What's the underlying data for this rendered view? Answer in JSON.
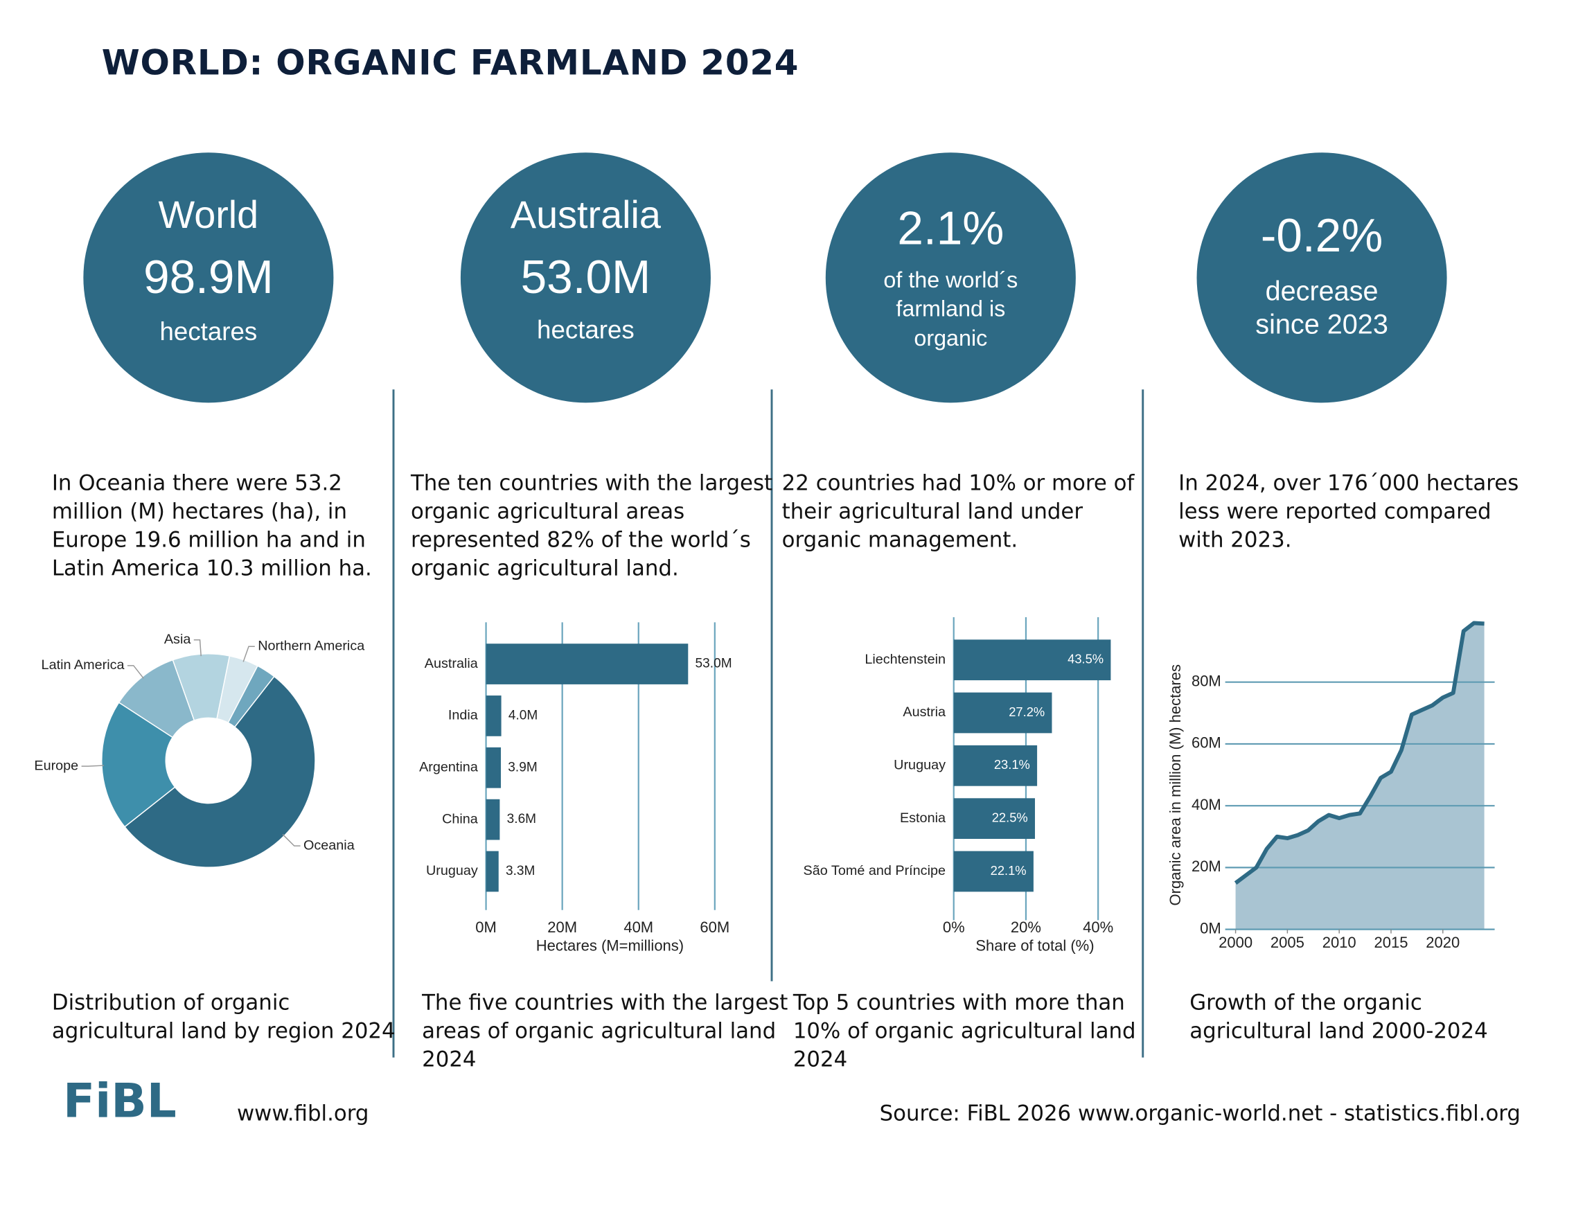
{
  "header": {
    "title": "WORLD: ORGANIC FARMLAND 2024"
  },
  "kpis": [
    {
      "lines": [
        "World",
        "98.9M",
        "hectares"
      ]
    },
    {
      "lines": [
        "Australia",
        "53.0M",
        "hectares"
      ]
    },
    {
      "lines": [
        "2.1%",
        "of the world´s",
        "farmland is",
        "organic"
      ]
    },
    {
      "lines": [
        "-0.2%",
        "decrease",
        "since 2023"
      ]
    }
  ],
  "texts": [
    [
      "In Oceania there were 53.2",
      "million (M) hectares (ha), in",
      "Europe 19.6 million ha and in",
      "Latin America 10.3 million ha."
    ],
    [
      "The ten countries with the largest",
      "organic agricultural areas",
      "represented 82% of the world´s",
      "organic agricultural land."
    ],
    [
      "22 countries had 10% or more of",
      "their agricultural land under",
      "organic management."
    ],
    [
      "In 2024, over 176´000 hectares",
      "less were reported compared",
      "with 2023."
    ]
  ],
  "captions": [
    [
      "Distribution of organic",
      "agricultural land by region 2024"
    ],
    [
      "The five countries with the largest",
      "areas of organic agricultural land",
      "2024"
    ],
    [
      "Top 5 countries with more than",
      "10% of organic agricultural land",
      "2024"
    ],
    [
      "Growth of the organic",
      "agricultural land 2000-2024"
    ]
  ],
  "footer": {
    "logo": "FiBL",
    "website": "www.fibl.org",
    "source": "Source: FiBL 2026 www.organic-world.net - statistics.fibl.org"
  },
  "chart_data": [
    {
      "type": "donut",
      "categories": [
        "Oceania",
        "Europe",
        "Latin America",
        "Asia",
        "Northern America",
        null
      ],
      "values": [
        53.2,
        19.6,
        10.3,
        8.5,
        4.4,
        2.9
      ],
      "colors": [
        "#2e6a85",
        "#3e8fab",
        "#8ab8cb",
        "#b3d4e0",
        "#d6e7ee",
        "#6fa7be"
      ]
    },
    {
      "type": "hbar",
      "categories": [
        "Australia",
        "India",
        "Argentina",
        "China",
        "Uruguay"
      ],
      "values": [
        53.0,
        4.0,
        3.9,
        3.6,
        3.3
      ],
      "value_labels": [
        "53.0M",
        "4.0M",
        "3.9M",
        "3.6M",
        "3.3M"
      ],
      "label_position": "outside",
      "color": "#2e6a85",
      "xlim": [
        0,
        65
      ],
      "xticks": [
        {
          "value": 0,
          "label": "0M"
        },
        {
          "value": 20,
          "label": "20M"
        },
        {
          "value": 40,
          "label": "40M"
        },
        {
          "value": 60,
          "label": "60M"
        }
      ],
      "xlabel": "Hectares (M=millions)",
      "grid": true
    },
    {
      "type": "hbar",
      "categories": [
        "Liechtenstein",
        "Austria",
        "Uruguay",
        "Estonia",
        "São Tomé and Príncipe"
      ],
      "values": [
        43.5,
        27.2,
        23.1,
        22.5,
        22.1
      ],
      "value_labels": [
        "43.5%",
        "27.2%",
        "23.1%",
        "22.5%",
        "22.1%"
      ],
      "label_position": "inside",
      "color": "#2e6a85",
      "xlim": [
        0,
        45
      ],
      "xticks": [
        {
          "value": 0,
          "label": "0%"
        },
        {
          "value": 20,
          "label": "20%"
        },
        {
          "value": 40,
          "label": "40%"
        }
      ],
      "xlabel": "Share of total (%)",
      "grid": true
    },
    {
      "type": "area",
      "x": [
        2000,
        2001,
        2002,
        2003,
        2004,
        2005,
        2006,
        2007,
        2008,
        2009,
        2010,
        2011,
        2012,
        2013,
        2014,
        2015,
        2016,
        2017,
        2018,
        2019,
        2020,
        2021,
        2022,
        2023,
        2024
      ],
      "values": [
        15,
        17.5,
        20,
        26,
        30,
        29.5,
        30.5,
        32,
        35,
        37,
        36,
        37,
        37.5,
        43,
        49,
        51,
        58,
        69.5,
        71,
        72.5,
        75,
        76.5,
        96.5,
        99.1,
        98.9
      ],
      "color": "#2e6a85",
      "fill": "#a9c4d2",
      "xlim": [
        1999,
        2025
      ],
      "ylim": [
        0,
        100
      ],
      "xticks": [
        2000,
        2005,
        2010,
        2015,
        2020
      ],
      "yticks": [
        {
          "value": 0,
          "label": "0M"
        },
        {
          "value": 20,
          "label": "20M"
        },
        {
          "value": 40,
          "label": "40M"
        },
        {
          "value": 60,
          "label": "60M"
        },
        {
          "value": 80,
          "label": "80M"
        }
      ],
      "ylabel": "Organic area in million (M) hectares",
      "grid": true
    }
  ]
}
